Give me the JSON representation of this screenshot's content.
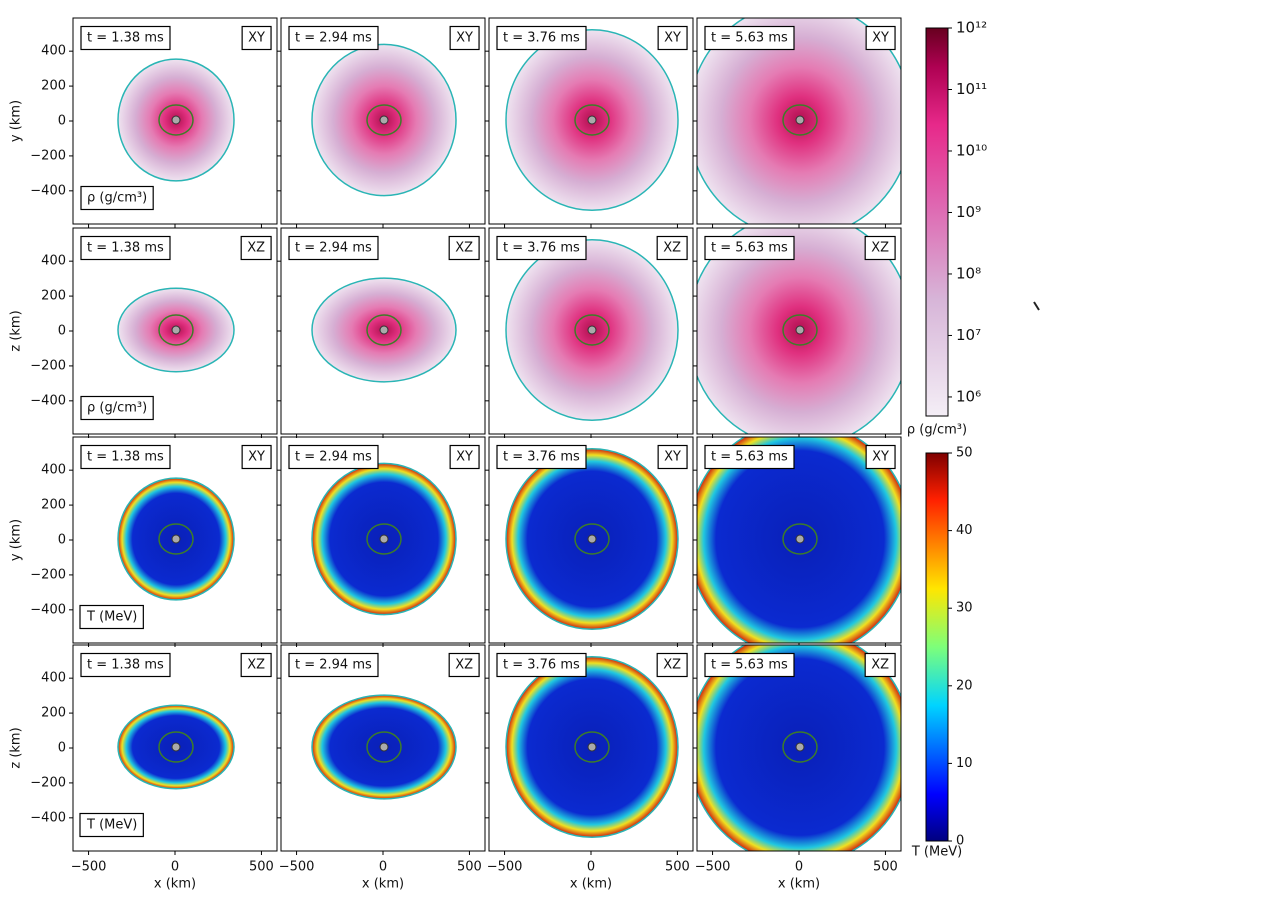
{
  "figure": {
    "times": [
      "t = 1.38 ms",
      "t = 2.94 ms",
      "t = 3.76 ms",
      "t = 5.63 ms"
    ],
    "rows": [
      {
        "plane": "XY",
        "quantity": "ρ (g/cm³)",
        "ylabel": "y (km)"
      },
      {
        "plane": "XZ",
        "quantity": "ρ (g/cm³)",
        "ylabel": "z (km)"
      },
      {
        "plane": "XY",
        "quantity": "T (MeV)",
        "ylabel": "y (km)"
      },
      {
        "plane": "XZ",
        "quantity": "T (MeV)",
        "ylabel": "z (km)"
      }
    ],
    "xlabel": "x (km)",
    "xlim": [
      -590,
      590
    ],
    "ylim": [
      -590,
      590
    ],
    "xticks": [
      {
        "value": -500,
        "label": "−500"
      },
      0,
      500
    ],
    "yticks": [
      {
        "value": -400,
        "label": "−400"
      },
      {
        "value": -200,
        "label": "−200"
      },
      0,
      200,
      400
    ],
    "colorbars": [
      {
        "label": "ρ (g/cm³)",
        "scale": "log",
        "lim": [
          490000,
          1000000000000
        ],
        "ticks": [
          {
            "value": 1000000,
            "label": "10⁶"
          },
          {
            "value": 10000000,
            "label": "10⁷"
          },
          {
            "value": 100000000,
            "label": "10⁸"
          },
          {
            "value": 1000000000,
            "label": "10⁹"
          },
          {
            "value": 10000000000,
            "label": "10¹⁰"
          },
          {
            "value": 100000000000,
            "label": "10¹¹"
          },
          {
            "value": 1000000000000,
            "label": "10¹²"
          }
        ]
      },
      {
        "label": "T (MeV)",
        "scale": "linear",
        "lim": [
          0,
          50
        ],
        "ticks": [
          0,
          10,
          20,
          30,
          40,
          50
        ]
      }
    ]
  }
}
